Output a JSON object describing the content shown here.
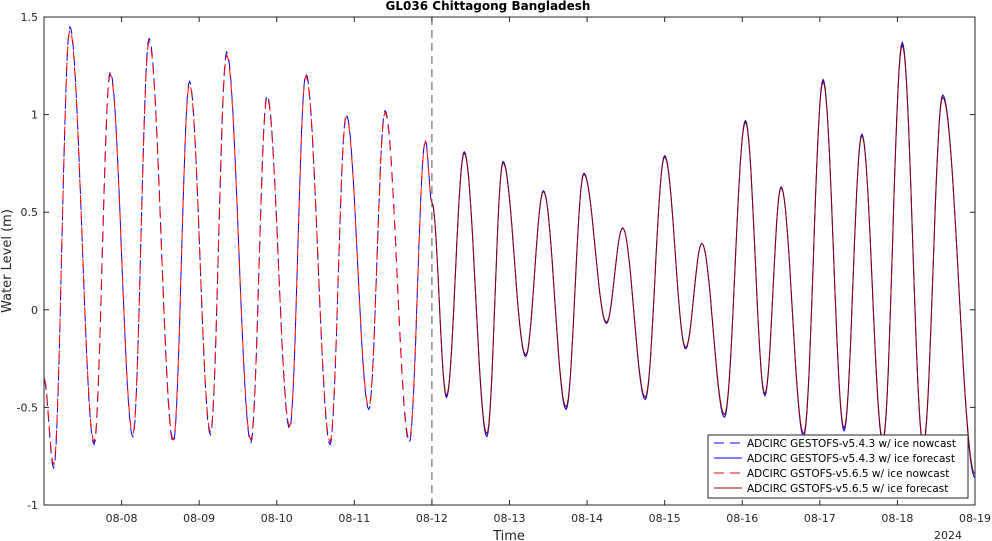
{
  "chart_data": {
    "type": "line",
    "title": "GL036 Chittagong Bangladesh",
    "xlabel": "Time",
    "ylabel": "Water Level (m)",
    "x_year_label": "2024",
    "xlim": [
      "2024-08-07 00:00",
      "2024-08-19 00:00"
    ],
    "ylim": [
      -1,
      1.5
    ],
    "x_ticks": [
      "08-08",
      "08-09",
      "08-10",
      "08-11",
      "08-12",
      "08-13",
      "08-14",
      "08-15",
      "08-16",
      "08-17",
      "08-18",
      "08-19"
    ],
    "y_ticks": [
      "-1",
      "-0.5",
      "0",
      "0.5",
      "1",
      "1.5"
    ],
    "y_tick_values": [
      -1,
      -0.5,
      0,
      0.5,
      1,
      1.5
    ],
    "nowcast_forecast_boundary": "2024-08-12 00:00",
    "grid": false,
    "legend_position": "bottom-right",
    "extrema_nowcast": [
      [
        "2024-08-07 00:00",
        -0.36
      ],
      [
        "2024-08-07 03:00",
        -0.81
      ],
      [
        "2024-08-07 08:00",
        1.45
      ],
      [
        "2024-08-07 15:30",
        -0.69
      ],
      [
        "2024-08-07 20:30",
        1.22
      ],
      [
        "2024-08-08 03:30",
        -0.65
      ],
      [
        "2024-08-08 08:30",
        1.39
      ],
      [
        "2024-08-08 16:00",
        -0.68
      ],
      [
        "2024-08-08 21:00",
        1.17
      ],
      [
        "2024-08-09 03:30",
        -0.64
      ],
      [
        "2024-08-09 08:30",
        1.32
      ],
      [
        "2024-08-09 16:00",
        -0.68
      ],
      [
        "2024-08-09 21:00",
        1.1
      ],
      [
        "2024-08-10 04:00",
        -0.61
      ],
      [
        "2024-08-10 09:00",
        1.21
      ],
      [
        "2024-08-10 16:30",
        -0.69
      ],
      [
        "2024-08-10 21:30",
        1.0
      ],
      [
        "2024-08-11 04:30",
        -0.51
      ],
      [
        "2024-08-11 09:30",
        1.02
      ],
      [
        "2024-08-11 17:00",
        -0.68
      ],
      [
        "2024-08-11 22:00",
        0.87
      ],
      [
        "2024-08-12 00:00",
        0.55
      ]
    ],
    "extrema_forecast": [
      [
        "2024-08-12 00:00",
        0.55
      ],
      [
        "2024-08-12 04:30",
        -0.45
      ],
      [
        "2024-08-12 10:00",
        0.81
      ],
      [
        "2024-08-12 17:00",
        -0.65
      ],
      [
        "2024-08-12 22:00",
        0.76
      ],
      [
        "2024-08-13 05:00",
        -0.24
      ],
      [
        "2024-08-13 10:30",
        0.61
      ],
      [
        "2024-08-13 17:30",
        -0.51
      ],
      [
        "2024-08-13 23:00",
        0.7
      ],
      [
        "2024-08-14 06:00",
        -0.07
      ],
      [
        "2024-08-14 11:00",
        0.42
      ],
      [
        "2024-08-14 18:00",
        -0.46
      ],
      [
        "2024-08-15 00:00",
        0.79
      ],
      [
        "2024-08-15 06:30",
        -0.2
      ],
      [
        "2024-08-15 11:30",
        0.34
      ],
      [
        "2024-08-15 18:30",
        -0.55
      ],
      [
        "2024-08-16 01:00",
        0.97
      ],
      [
        "2024-08-16 07:00",
        -0.44
      ],
      [
        "2024-08-16 12:00",
        0.63
      ],
      [
        "2024-08-16 19:00",
        -0.65
      ],
      [
        "2024-08-17 01:00",
        1.18
      ],
      [
        "2024-08-17 07:30",
        -0.62
      ],
      [
        "2024-08-17 13:00",
        0.9
      ],
      [
        "2024-08-17 19:30",
        -0.68
      ],
      [
        "2024-08-18 01:30",
        1.37
      ],
      [
        "2024-08-18 08:00",
        -0.7
      ],
      [
        "2024-08-18 14:00",
        1.1
      ],
      [
        "2024-08-19 00:00",
        -0.86
      ]
    ],
    "series": [
      {
        "name": "ADCIRC GESTOFS-v5.4.3 w/ ice nowcast",
        "color": "#0000ff",
        "style": "dashed",
        "segment": "nowcast"
      },
      {
        "name": "ADCIRC GESTOFS-v5.4.3 w/ ice forecast",
        "color": "#0000ff",
        "style": "solid",
        "segment": "forecast"
      },
      {
        "name": "ADCIRC GSTOFS-v5.6.5 w/ ice nowcast",
        "color": "#ff0000",
        "style": "dashed",
        "segment": "nowcast"
      },
      {
        "name": "ADCIRC GSTOFS-v5.6.5 w/ ice forecast",
        "color": "#8b0000",
        "style": "solid",
        "segment": "forecast"
      }
    ]
  }
}
